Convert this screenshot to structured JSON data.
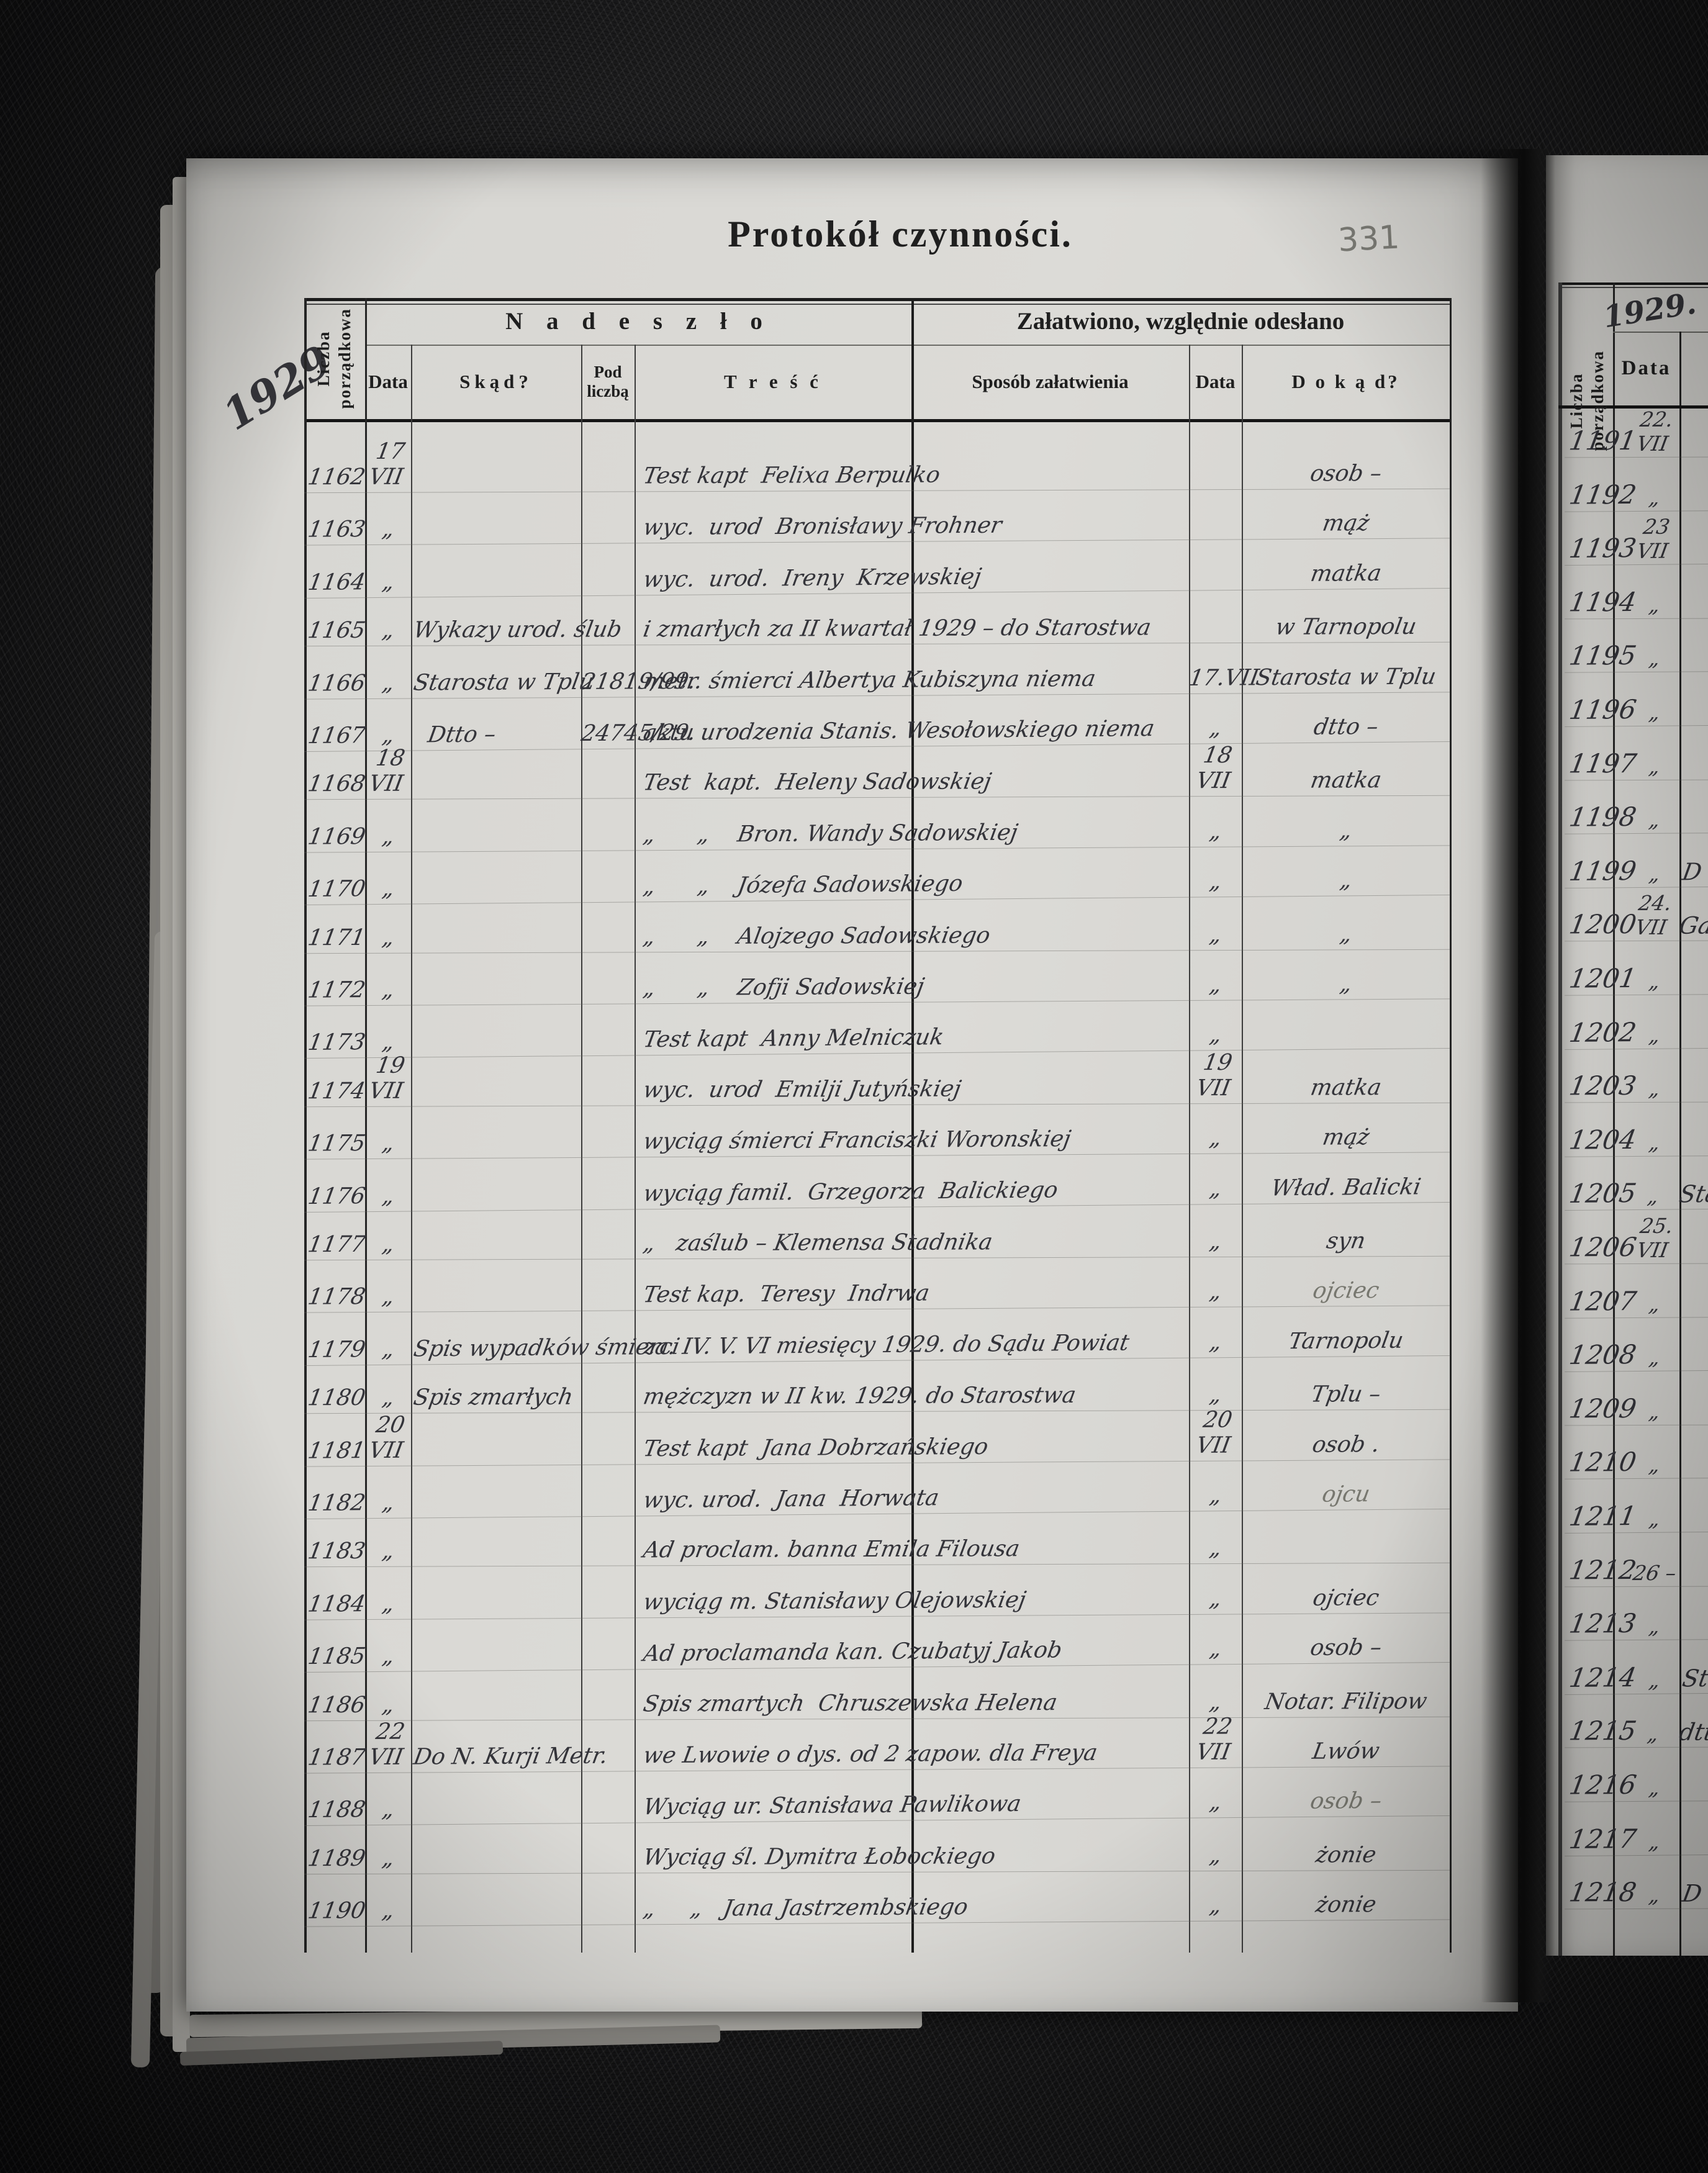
{
  "page": {
    "title": "Protokół czynności.",
    "page_number": "331",
    "year_left": "1929"
  },
  "table": {
    "group_headers": {
      "left": "N a d e s z ł o",
      "right": "Załatwiono, względnie odesłano"
    },
    "columns": {
      "ordinal": "Liczba\nporządkowa",
      "date": "Data",
      "from": "Skąd?",
      "under_number": "Pod liczbą",
      "content": "T r e ś ć",
      "method": "Sposób załatwienia",
      "date2": "Data",
      "to": "D o k ą d?"
    },
    "rows": [
      {
        "no": "1162",
        "date": "17 VII",
        "from": "",
        "under": "",
        "content": "Test kapt  Felixa Berpulko",
        "date2": "",
        "to": "osob –"
      },
      {
        "no": "1163",
        "date": "„",
        "from": "",
        "under": "",
        "content": "wyc.  urod  Bronisławy Frohner",
        "date2": "",
        "to": "mąż"
      },
      {
        "no": "1164",
        "date": "„",
        "from": "",
        "under": "",
        "content": "wyc.  urod.  Ireny  Krzewskiej",
        "date2": "",
        "to": "matka"
      },
      {
        "no": "1165",
        "date": "„",
        "from": "Wykazy urod. ślub",
        "under": "",
        "content": "i zmarłych za II kwartał 1929 – do Starostwa",
        "date2": "",
        "to": "w Tarnopolu"
      },
      {
        "no": "1166",
        "date": "„",
        "from": "Starosta w Tplu",
        "under": "21819/99.",
        "content": "metr. śmierci Albertya Kubiszyna niema",
        "date2": "17.VII",
        "to": "Starosta w Tplu"
      },
      {
        "no": "1167",
        "date": "„",
        "from": "  Dtto –",
        "under": "24745/29.",
        "content": "aktu urodzenia Stanis. Wesołowskiego niema",
        "date2": "„",
        "to": "dtto –"
      },
      {
        "no": "1168",
        "date": "18 VII",
        "from": "",
        "under": "",
        "content": "Test  kapt.  Heleny Sadowskiej",
        "date2": "18 VII",
        "to": "matka"
      },
      {
        "no": "1169",
        "date": "„",
        "from": "",
        "under": "",
        "content": "„      „    Bron. Wandy Sadowskiej",
        "date2": "„",
        "to": "„"
      },
      {
        "no": "1170",
        "date": "„",
        "from": "",
        "under": "",
        "content": "„      „    Józefa Sadowskiego",
        "date2": "„",
        "to": "„"
      },
      {
        "no": "1171",
        "date": "„",
        "from": "",
        "under": "",
        "content": "„      „    Alojzego Sadowskiego",
        "date2": "„",
        "to": "„"
      },
      {
        "no": "1172",
        "date": "„",
        "from": "",
        "under": "",
        "content": "„      „    Zofji Sadowskiej",
        "date2": "„",
        "to": "„"
      },
      {
        "no": "1173",
        "date": "„",
        "from": "",
        "under": "",
        "content": "Test kapt  Anny Melniczuk",
        "date2": "„",
        "to": ""
      },
      {
        "no": "1174",
        "date": "19 VII",
        "from": "",
        "under": "",
        "content": "wyc.  urod  Emilji Jutyńskiej",
        "date2": "19 VII",
        "to": "matka"
      },
      {
        "no": "1175",
        "date": "„",
        "from": "",
        "under": "",
        "content": "wyciąg śmierci Franciszki Woronskiej",
        "date2": "„",
        "to": "mąż"
      },
      {
        "no": "1176",
        "date": "„",
        "from": "",
        "under": "",
        "content": "wyciąg famil.  Grzegorza  Balickiego",
        "date2": "„",
        "to": "Wład. Balicki"
      },
      {
        "no": "1177",
        "date": "„",
        "from": "",
        "under": "",
        "content": "„   zaślub – Klemensa Stadnika",
        "date2": "„",
        "to": "syn"
      },
      {
        "no": "1178",
        "date": "„",
        "from": "",
        "under": "",
        "content": "Test kap.  Teresy  Indrwa",
        "date2": "„",
        "to": "ojciec",
        "pencil": true
      },
      {
        "no": "1179",
        "date": "„",
        "from": "Spis wypadków śmierci",
        "under": "",
        "content": "za. IV. V. VI miesięcy 1929. do Sądu Powiat",
        "date2": "„",
        "to": "Tarnopolu"
      },
      {
        "no": "1180",
        "date": "„",
        "from": "Spis zmarłych",
        "under": "",
        "content": "mężczyzn w II kw. 1929. do Starostwa",
        "date2": "„",
        "to": "Tplu –"
      },
      {
        "no": "1181",
        "date": "20 VII",
        "from": "",
        "under": "",
        "content": "Test kapt  Jana Dobrzańskiego",
        "date2": "20 VII",
        "to": "osob ."
      },
      {
        "no": "1182",
        "date": "„",
        "from": "",
        "under": "",
        "content": "wyc. urod.  Jana  Horwata",
        "date2": "„",
        "to": "ojcu",
        "pencil": true
      },
      {
        "no": "1183",
        "date": "„",
        "from": "",
        "under": "",
        "content": "Ad proclam. banna Emila Filousa",
        "date2": "„",
        "to": ""
      },
      {
        "no": "1184",
        "date": "„",
        "from": "",
        "under": "",
        "content": "wyciąg m. Stanisławy Olejowskiej",
        "date2": "„",
        "to": "ojciec"
      },
      {
        "no": "1185",
        "date": "„",
        "from": "",
        "under": "",
        "content": "Ad proclamanda kan. Czubatyj Jakob",
        "date2": "„",
        "to": "osob –"
      },
      {
        "no": "1186",
        "date": "„",
        "from": "",
        "under": "",
        "content": "Spis zmartych  Chruszewska Helena",
        "date2": "„",
        "to": "Notar. Filipow"
      },
      {
        "no": "1187",
        "date": "22 VII",
        "from": "Do N. Kurji Metr.",
        "under": "",
        "content": "we Lwowie o dys. od 2 zapow. dla Freya",
        "date2": "22 VII",
        "to": "Lwów"
      },
      {
        "no": "1188",
        "date": "„",
        "from": "",
        "under": "",
        "content": "Wyciąg ur. Stanisława Pawlikowa",
        "date2": "„",
        "to": "osob –",
        "pencil": true
      },
      {
        "no": "1189",
        "date": "„",
        "from": "",
        "under": "",
        "content": "Wyciąg śl. Dymitra Łobockiego",
        "date2": "„",
        "to": "żonie"
      },
      {
        "no": "1190",
        "date": "„",
        "from": "",
        "under": "",
        "content": "„     „   Jana Jastrzembskiego",
        "date2": "„",
        "to": "żonie"
      }
    ]
  },
  "right_page": {
    "year": "1929.",
    "ordinal_header": "Liczba\nporządkowa",
    "date_header": "Data",
    "rows": [
      {
        "no": "1191",
        "date": "22. VII",
        "partial": ""
      },
      {
        "no": "1192",
        "date": "„",
        "partial": ""
      },
      {
        "no": "1193",
        "date": "23 VII",
        "partial": ""
      },
      {
        "no": "1194",
        "date": "„",
        "partial": ""
      },
      {
        "no": "1195",
        "date": "„",
        "partial": ""
      },
      {
        "no": "1196",
        "date": "„",
        "partial": ""
      },
      {
        "no": "1197",
        "date": "„",
        "partial": ""
      },
      {
        "no": "1198",
        "date": "„",
        "partial": ""
      },
      {
        "no": "1199",
        "date": "„",
        "partial": "D"
      },
      {
        "no": "1200",
        "date": "24. VII",
        "partial": "Ga"
      },
      {
        "no": "1201",
        "date": "„",
        "partial": ""
      },
      {
        "no": "1202",
        "date": "„",
        "partial": ""
      },
      {
        "no": "1203",
        "date": "„",
        "partial": ""
      },
      {
        "no": "1204",
        "date": "„",
        "partial": ""
      },
      {
        "no": "1205",
        "date": "„",
        "partial": "Sta"
      },
      {
        "no": "1206",
        "date": "25. VII",
        "partial": ""
      },
      {
        "no": "1207",
        "date": "„",
        "partial": ""
      },
      {
        "no": "1208",
        "date": "„",
        "partial": ""
      },
      {
        "no": "1209",
        "date": "„",
        "partial": ""
      },
      {
        "no": "1210",
        "date": "„",
        "partial": ""
      },
      {
        "no": "1211",
        "date": "„",
        "partial": ""
      },
      {
        "no": "1212",
        "date": "26 –",
        "partial": ""
      },
      {
        "no": "1213",
        "date": "„",
        "partial": ""
      },
      {
        "no": "1214",
        "date": "„",
        "partial": "St"
      },
      {
        "no": "1215",
        "date": "„",
        "partial": "dtt"
      },
      {
        "no": "1216",
        "date": "„",
        "partial": ""
      },
      {
        "no": "1217",
        "date": "„",
        "partial": ""
      },
      {
        "no": "1218",
        "date": "„",
        "partial": "D"
      }
    ]
  }
}
